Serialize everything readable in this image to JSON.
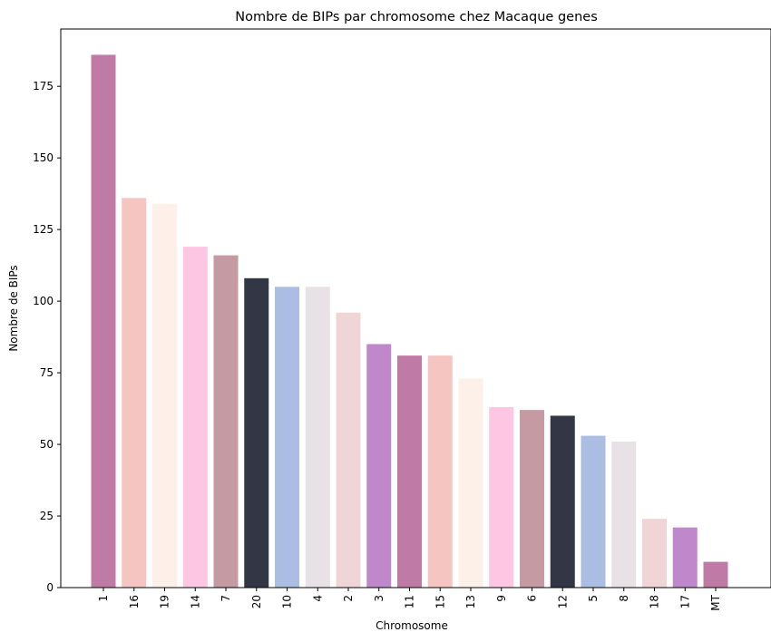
{
  "chart_data": {
    "type": "bar",
    "title": "Nombre de BIPs par chromosome chez Macaque genes",
    "xlabel": "Chromosome",
    "ylabel": "Nombre de BIPs",
    "ylim": [
      0,
      195
    ],
    "yticks": [
      0,
      25,
      50,
      75,
      100,
      125,
      150,
      175
    ],
    "grid": false,
    "categories": [
      "1",
      "16",
      "19",
      "14",
      "7",
      "20",
      "10",
      "4",
      "2",
      "3",
      "11",
      "15",
      "13",
      "9",
      "6",
      "12",
      "5",
      "8",
      "18",
      "17",
      "MT"
    ],
    "values": [
      186,
      136,
      134,
      119,
      116,
      108,
      105,
      105,
      96,
      85,
      81,
      81,
      73,
      63,
      62,
      60,
      53,
      51,
      24,
      21,
      9
    ],
    "colors": [
      "#bf7ba6",
      "#f5c6c1",
      "#fdf0e8",
      "#fdc6e3",
      "#c59aa2",
      "#333745",
      "#abbde2",
      "#e8e1e6",
      "#f0d5d7",
      "#bf88cb",
      "#bf7ba6",
      "#f5c6c1",
      "#fdf0e8",
      "#fdc6e3",
      "#c59aa2",
      "#333745",
      "#abbde2",
      "#e8e1e6",
      "#f0d5d7",
      "#bf88cb",
      "#bf7ba6"
    ]
  }
}
